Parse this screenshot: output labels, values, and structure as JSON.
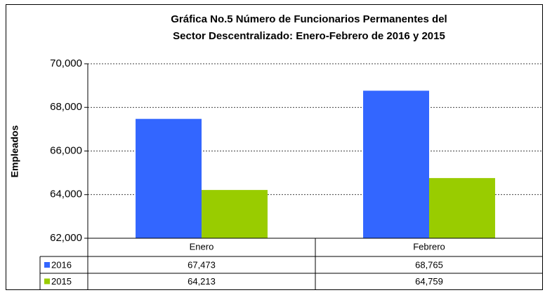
{
  "chart_data": {
    "type": "bar",
    "title": [
      "Gráfica No.5 Número de Funcionarios Permanentes del",
      "Sector Descentralizado: Enero-Febrero de 2016 y 2015"
    ],
    "y_label": "Empleados",
    "categories": [
      "Enero",
      "Febrero"
    ],
    "series": [
      {
        "name": "2016",
        "color": "#3366ff",
        "values": [
          67473,
          68765
        ],
        "value_labels": [
          "67,473",
          "68,765"
        ]
      },
      {
        "name": "2015",
        "color": "#99cc00",
        "values": [
          64213,
          64759
        ],
        "value_labels": [
          "64,213",
          "64,759"
        ]
      }
    ],
    "ylim": [
      62000,
      70000
    ],
    "yticks": [
      {
        "value": 62000,
        "label": "62,000"
      },
      {
        "value": 64000,
        "label": "64,000"
      },
      {
        "value": 66000,
        "label": "66,000"
      },
      {
        "value": 68000,
        "label": "68,000"
      },
      {
        "value": 70000,
        "label": "70,000"
      }
    ],
    "grid": true,
    "legend": "table"
  }
}
